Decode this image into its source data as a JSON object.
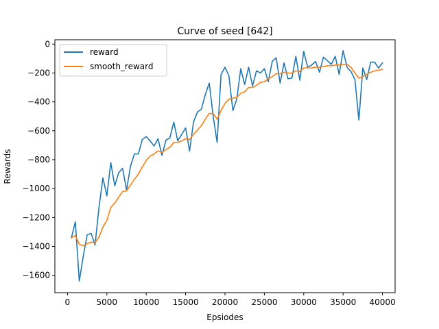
{
  "chart_data": {
    "type": "line",
    "title": "Curve of seed [642]",
    "xlabel": "Epsiodes",
    "ylabel": "Rewards",
    "xlim": [
      -1600,
      41600
    ],
    "ylim": [
      -1720,
      30
    ],
    "xticks": [
      0,
      5000,
      10000,
      15000,
      20000,
      25000,
      30000,
      35000,
      40000
    ],
    "yticks": [
      0,
      -200,
      -400,
      -600,
      -800,
      -1000,
      -1200,
      -1400,
      -1600
    ],
    "grid": false,
    "legend_position": "upper-left",
    "x": [
      500,
      1000,
      1500,
      2000,
      2500,
      3000,
      3500,
      4000,
      4500,
      5000,
      5500,
      6000,
      6500,
      7000,
      7500,
      8000,
      8500,
      9000,
      9500,
      10000,
      10500,
      11000,
      11500,
      12000,
      12500,
      13000,
      13500,
      14000,
      14500,
      15000,
      15500,
      16000,
      16500,
      17000,
      17500,
      18000,
      18500,
      19000,
      19500,
      20000,
      20500,
      21000,
      21500,
      22000,
      22500,
      23000,
      23500,
      24000,
      24500,
      25000,
      25500,
      26000,
      26500,
      27000,
      27500,
      28000,
      28500,
      29000,
      29500,
      30000,
      30500,
      31000,
      31500,
      32000,
      32500,
      33000,
      33500,
      34000,
      34500,
      35000,
      35500,
      36000,
      36500,
      37000,
      37500,
      38000,
      38500,
      39000,
      39500,
      40000
    ],
    "series": [
      {
        "name": "reward",
        "color": "#1f77b4",
        "values": [
          -1340,
          -1230,
          -1640,
          -1470,
          -1320,
          -1310,
          -1390,
          -1130,
          -925,
          -1050,
          -820,
          -980,
          -890,
          -860,
          -1010,
          -845,
          -760,
          -760,
          -660,
          -640,
          -670,
          -705,
          -655,
          -770,
          -665,
          -650,
          -540,
          -670,
          -625,
          -580,
          -740,
          -540,
          -470,
          -450,
          -350,
          -270,
          -500,
          -680,
          -210,
          -160,
          -220,
          -460,
          -380,
          -170,
          -280,
          -160,
          -290,
          -185,
          -200,
          -170,
          -260,
          -120,
          -95,
          -270,
          -130,
          -240,
          -235,
          -85,
          -250,
          -50,
          -160,
          -145,
          -120,
          -195,
          -90,
          -115,
          -140,
          -85,
          -210,
          -45,
          -160,
          -190,
          -245,
          -525,
          -165,
          -245,
          -125,
          -125,
          -165,
          -130
        ]
      },
      {
        "name": "smooth_reward",
        "color": "#ff7f0e",
        "values": [
          -1340,
          -1325,
          -1385,
          -1395,
          -1380,
          -1370,
          -1375,
          -1335,
          -1265,
          -1220,
          -1130,
          -1100,
          -1060,
          -1020,
          -1015,
          -975,
          -935,
          -900,
          -850,
          -805,
          -775,
          -760,
          -740,
          -750,
          -730,
          -715,
          -680,
          -680,
          -670,
          -655,
          -660,
          -625,
          -595,
          -565,
          -520,
          -480,
          -480,
          -520,
          -460,
          -410,
          -380,
          -375,
          -370,
          -340,
          -330,
          -300,
          -300,
          -285,
          -265,
          -260,
          -240,
          -225,
          -205,
          -205,
          -195,
          -200,
          -200,
          -185,
          -190,
          -165,
          -165,
          -165,
          -160,
          -160,
          -155,
          -150,
          -150,
          -145,
          -145,
          -140,
          -140,
          -160,
          -200,
          -235,
          -225,
          -210,
          -195,
          -185,
          -180,
          -175
        ]
      }
    ]
  }
}
